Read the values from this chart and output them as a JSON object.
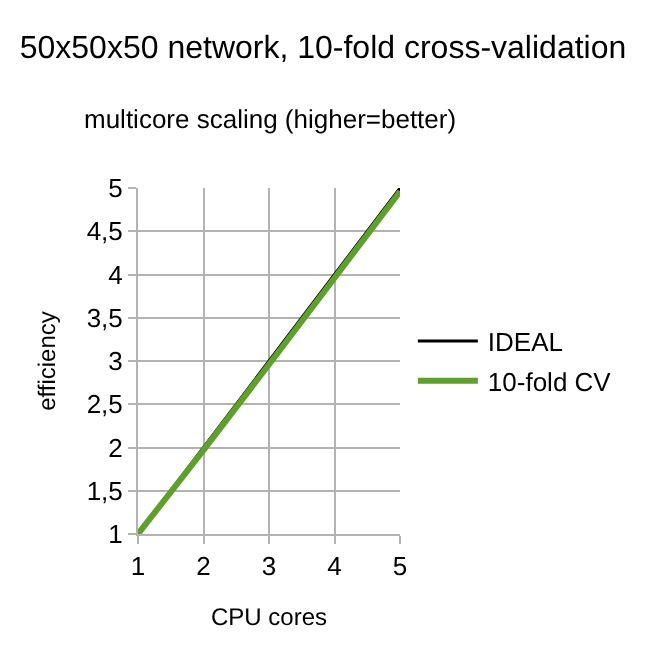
{
  "chart_data": {
    "type": "line",
    "title": "50x50x50 network, 10-fold cross-validation",
    "subtitle": "multicore scaling (higher=better)",
    "xlabel": "CPU cores",
    "ylabel": "efficiency",
    "x": [
      1,
      2,
      3,
      4,
      5
    ],
    "series": [
      {
        "name": "IDEAL",
        "color": "#000000",
        "values": [
          1,
          2,
          3,
          4,
          5
        ]
      },
      {
        "name": "10-fold CV",
        "color": "#5fa02c",
        "values": [
          1,
          1.97,
          2.96,
          3.96,
          4.96
        ]
      }
    ],
    "xlim": [
      1,
      5
    ],
    "xticks": [
      1,
      2,
      3,
      4,
      5
    ],
    "ylim": [
      1,
      5
    ],
    "yticks": [
      1,
      {
        "value": 1.5,
        "label": "1,5"
      },
      2,
      {
        "value": 2.5,
        "label": "2,5"
      },
      3,
      {
        "value": 3.5,
        "label": "3,5"
      },
      4,
      {
        "value": 4.5,
        "label": "4,5"
      },
      5
    ],
    "grid": true,
    "legend": "right",
    "marker": "none",
    "line_style": "solid"
  }
}
